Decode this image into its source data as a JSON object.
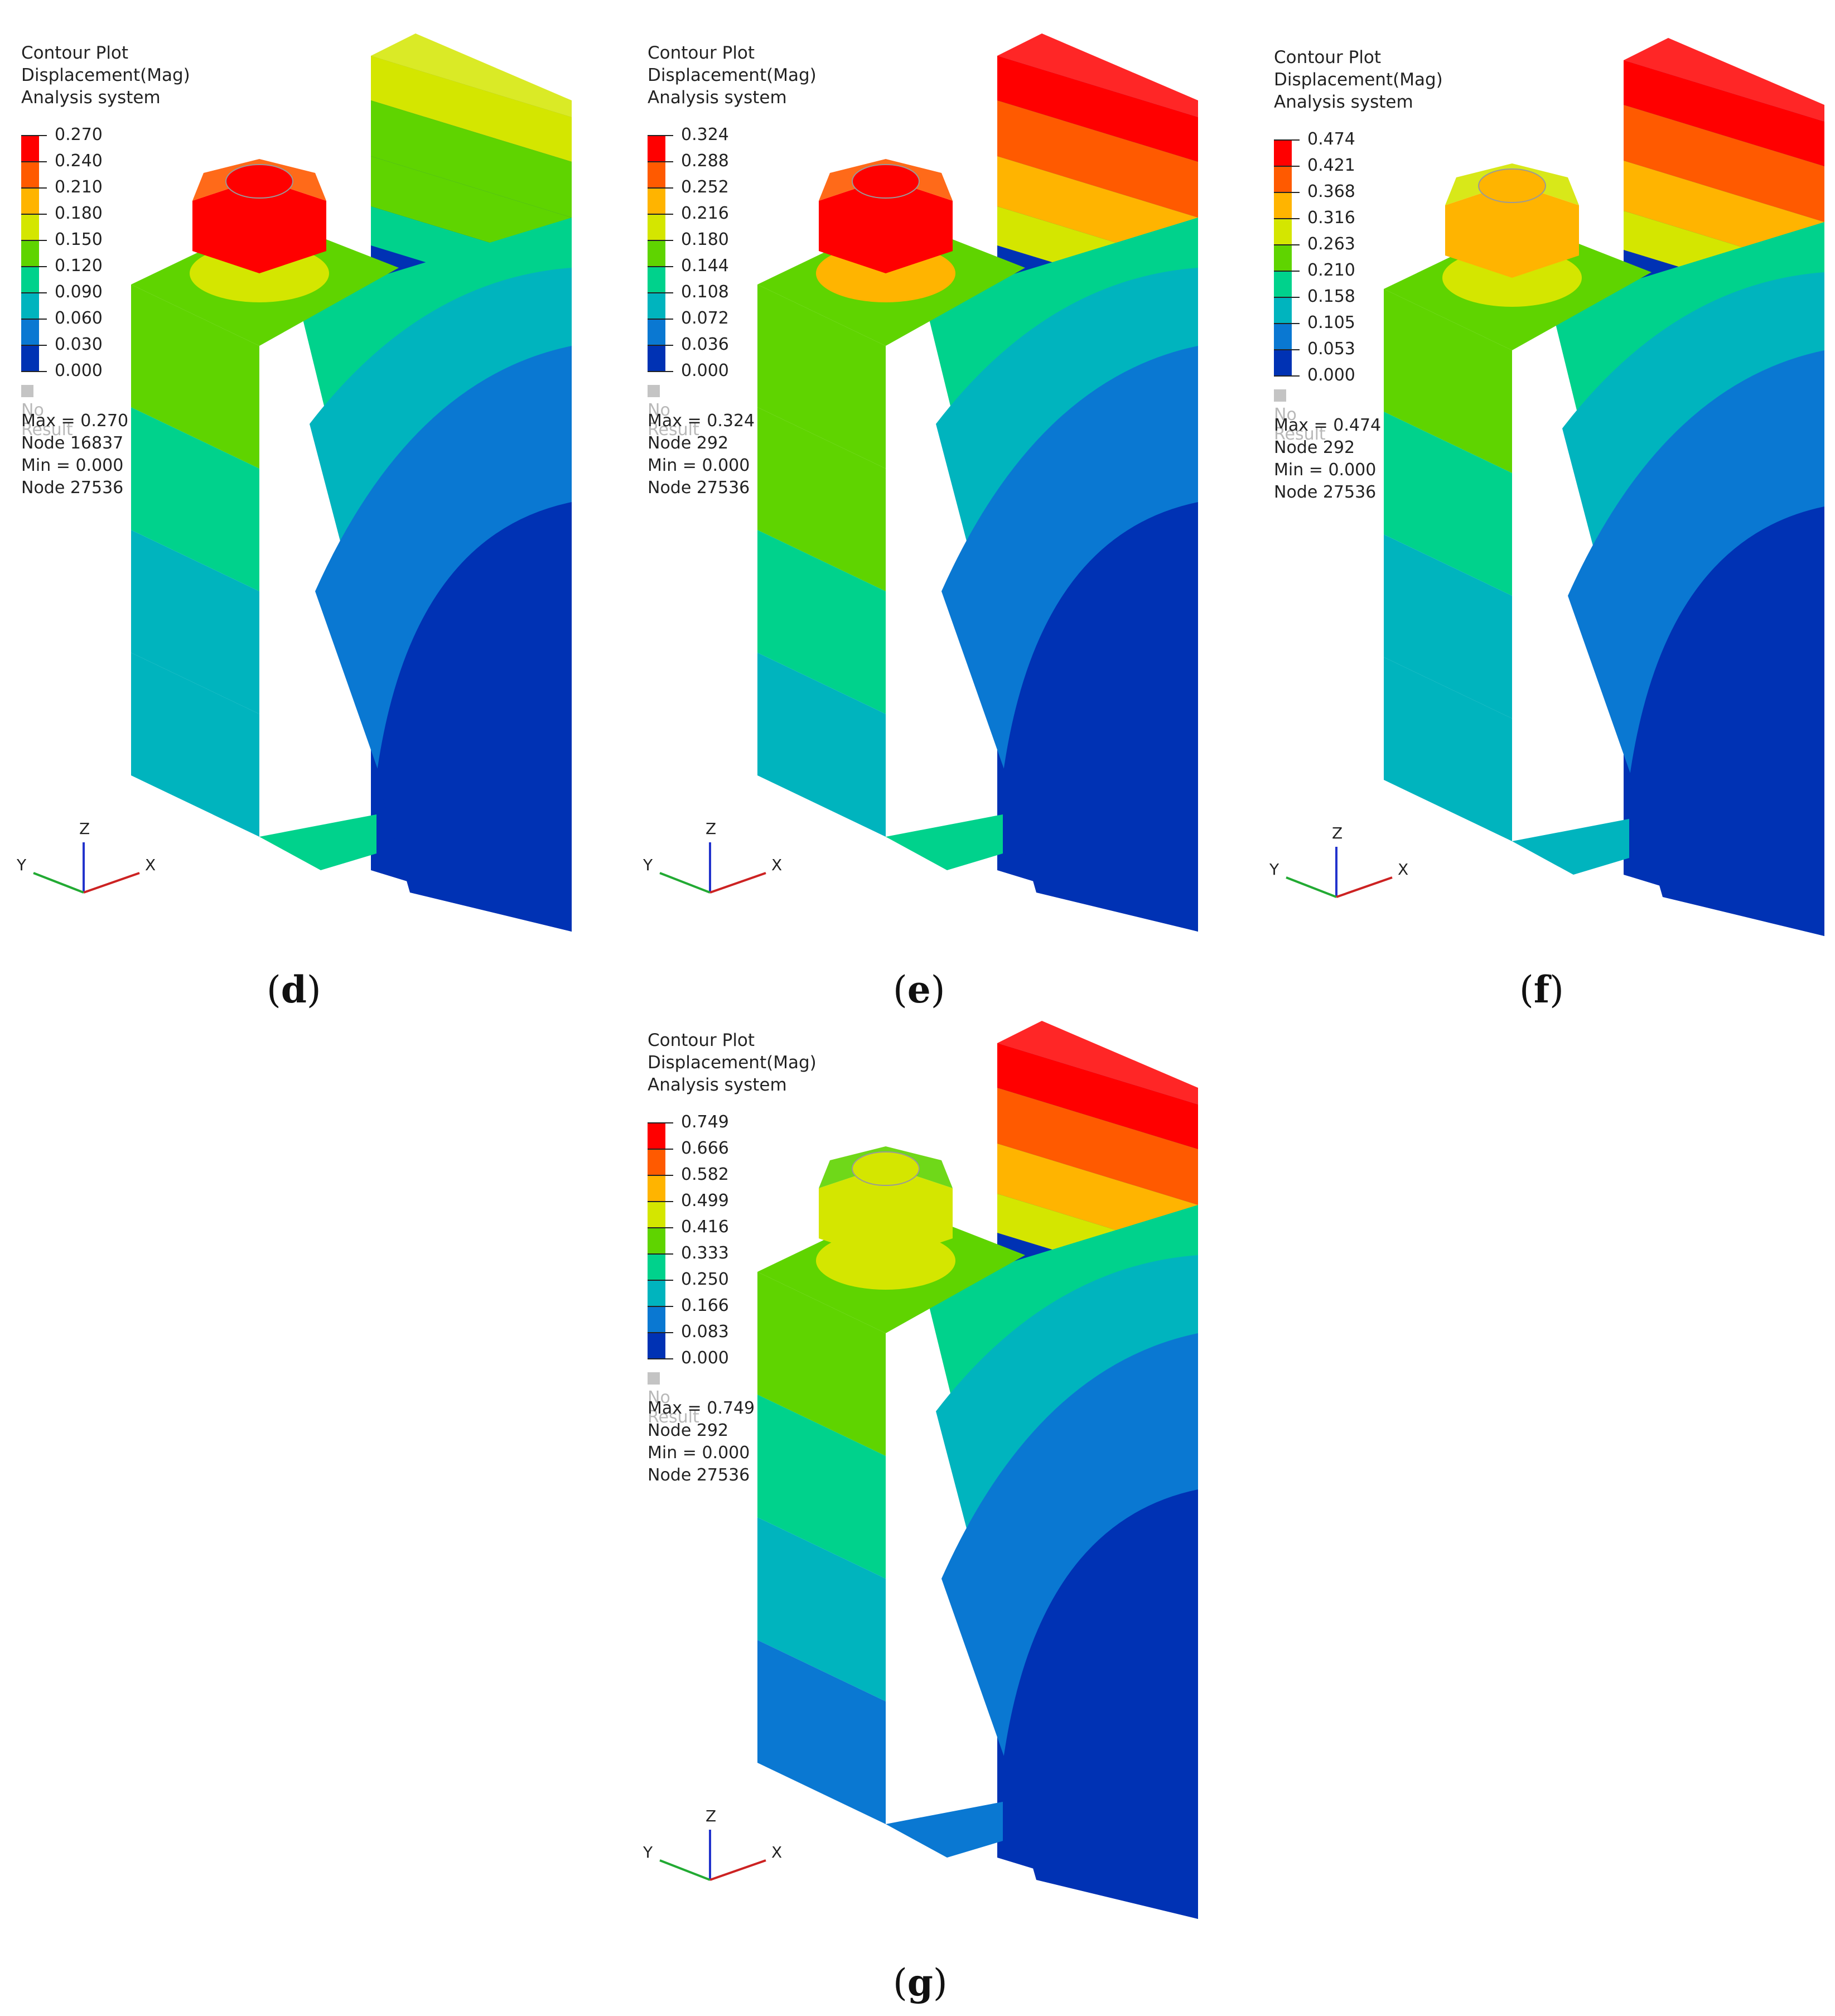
{
  "panels": [
    {
      "id": "d",
      "legend": {
        "title": "Contour Plot",
        "quantity": "Displacement(Mag)",
        "system": "Analysis system",
        "values": [
          "0.270",
          "0.240",
          "0.210",
          "0.180",
          "0.150",
          "0.120",
          "0.090",
          "0.060",
          "0.030",
          "0.000"
        ],
        "no_result": "No Result"
      },
      "stats": {
        "max": "Max = 0.270",
        "max_node": "Node 16837",
        "min": "Min = 0.000",
        "min_node": "Node 27536"
      },
      "caption": {
        "open": "(",
        "letter": "d",
        "close": ")"
      }
    },
    {
      "id": "e",
      "legend": {
        "title": "Contour Plot",
        "quantity": "Displacement(Mag)",
        "system": "Analysis system",
        "values": [
          "0.324",
          "0.288",
          "0.252",
          "0.216",
          "0.180",
          "0.144",
          "0.108",
          "0.072",
          "0.036",
          "0.000"
        ],
        "no_result": "No Result"
      },
      "stats": {
        "max": "Max = 0.324",
        "max_node": "Node 292",
        "min": "Min = 0.000",
        "min_node": "Node 27536"
      },
      "caption": {
        "open": "(",
        "letter": "e",
        "close": ")"
      }
    },
    {
      "id": "f",
      "legend": {
        "title": "Contour Plot",
        "quantity": "Displacement(Mag)",
        "system": "Analysis system",
        "values": [
          "0.474",
          "0.421",
          "0.368",
          "0.316",
          "0.263",
          "0.210",
          "0.158",
          "0.105",
          "0.053",
          "0.000"
        ],
        "no_result": "No Result"
      },
      "stats": {
        "max": "Max = 0.474",
        "max_node": "Node 292",
        "min": "Min = 0.000",
        "min_node": "Node 27536"
      },
      "caption": {
        "open": "(",
        "letter": "f",
        "close": ")"
      }
    },
    {
      "id": "g",
      "legend": {
        "title": "Contour Plot",
        "quantity": "Displacement(Mag)",
        "system": "Analysis system",
        "values": [
          "0.749",
          "0.666",
          "0.582",
          "0.499",
          "0.416",
          "0.333",
          "0.250",
          "0.166",
          "0.083",
          "0.000"
        ],
        "no_result": "No Result"
      },
      "stats": {
        "max": "Max = 0.749",
        "max_node": "Node 292",
        "min": "Min = 0.000",
        "min_node": "Node 27536"
      },
      "caption": {
        "open": "(",
        "letter": "g",
        "close": ")"
      }
    }
  ],
  "triad": {
    "z": "Z",
    "y": "Y",
    "x": "X"
  },
  "colors": {
    "contour_bands": [
      "#ff0000",
      "#ff5a00",
      "#ffb400",
      "#d4e600",
      "#5fd400",
      "#00d28c",
      "#00b4be",
      "#0a78d2",
      "#0032b4"
    ],
    "no_result": "#c4c4c4"
  }
}
